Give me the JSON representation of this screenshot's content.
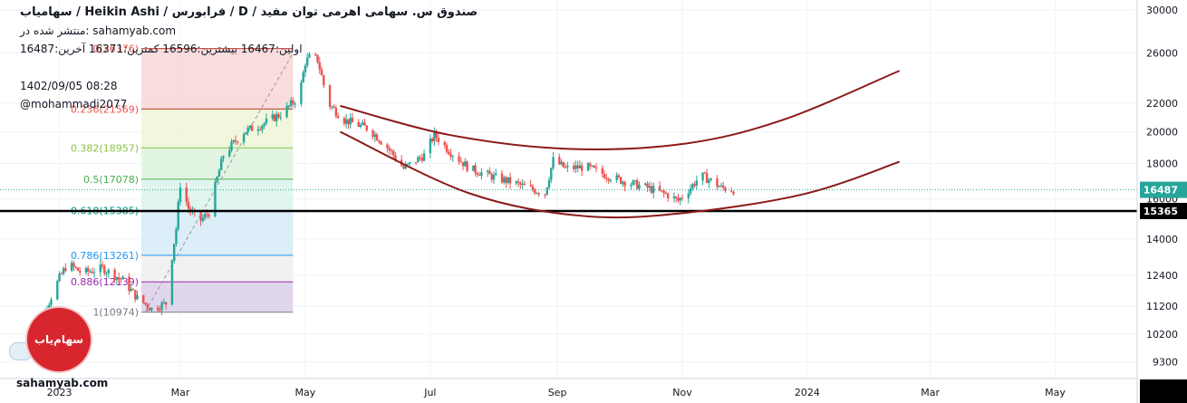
{
  "header": {
    "title": "صندوق س. سهامی اهرمی توان مفید / D / فرابورس / Heikin Ashi / سهامیاب",
    "published": "منتشر شده در: sahamyab.com",
    "ohlc": "اولین:16467 بیشترین:16596 کمترین:16371 آخرین:16487",
    "datetime": "1402/09/05 08:28",
    "author": "@mohammadi2077"
  },
  "watermark": {
    "domain": "sahamyab.com",
    "logo_text": "سهام‌یاب"
  },
  "colors": {
    "up": "#26a69a",
    "down": "#ef5350",
    "arc": "#8b1a1a",
    "support": "#000000",
    "last_price": "#26a69a",
    "fib_line_0236": "#c0392b",
    "fib_line_0382": "#8bc34a",
    "fib_line_05": "#4caf50",
    "fib_line_0618": "#009688",
    "fib_line_0786": "#2196f3",
    "fib_line_0886": "#9c27b0",
    "fib_line_1": "#787b86"
  },
  "chart_data": {
    "type": "candlestick",
    "style": "Heikin Ashi",
    "scale": "log",
    "grid": true,
    "x_range": [
      "2022-12-03",
      "2024-06-10"
    ],
    "ylim": [
      8800,
      31000
    ],
    "x_ticks": [
      {
        "label": "2023",
        "date": "2023-01-01"
      },
      {
        "label": "Mar",
        "date": "2023-03-01"
      },
      {
        "label": "May",
        "date": "2023-05-01"
      },
      {
        "label": "Jul",
        "date": "2023-07-01"
      },
      {
        "label": "Sep",
        "date": "2023-09-01"
      },
      {
        "label": "Nov",
        "date": "2023-11-01"
      },
      {
        "label": "2024",
        "date": "2024-01-01"
      },
      {
        "label": "Mar",
        "date": "2024-03-01"
      },
      {
        "label": "May",
        "date": "2024-05-01"
      }
    ],
    "y_ticks": [
      9300,
      10200,
      11200,
      12400,
      14000,
      16000,
      18000,
      20000,
      22000,
      26000,
      30000
    ],
    "last_price": 16487,
    "support_level": 15365,
    "price_path": [
      [
        "2022-12-15",
        10200
      ],
      [
        "2022-12-25",
        11000
      ],
      [
        "2023-01-01",
        12300
      ],
      [
        "2023-01-05",
        12900
      ],
      [
        "2023-01-12",
        12500
      ],
      [
        "2023-01-22",
        12700
      ],
      [
        "2023-02-01",
        12200
      ],
      [
        "2023-02-08",
        11500
      ],
      [
        "2023-02-15",
        11100
      ],
      [
        "2023-02-22",
        11300
      ],
      [
        "2023-02-27",
        14500
      ],
      [
        "2023-03-01",
        16800
      ],
      [
        "2023-03-05",
        15500
      ],
      [
        "2023-03-10",
        14800
      ],
      [
        "2023-03-15",
        15300
      ],
      [
        "2023-03-22",
        18500
      ],
      [
        "2023-04-01",
        20000
      ],
      [
        "2023-04-10",
        20500
      ],
      [
        "2023-04-20",
        21300
      ],
      [
        "2023-04-28",
        22500
      ],
      [
        "2023-05-01",
        25200
      ],
      [
        "2023-05-04",
        25800
      ],
      [
        "2023-05-07",
        25400
      ],
      [
        "2023-05-12",
        22000
      ],
      [
        "2023-05-20",
        20800
      ],
      [
        "2023-06-01",
        20200
      ],
      [
        "2023-06-10",
        19000
      ],
      [
        "2023-06-18",
        17700
      ],
      [
        "2023-06-28",
        18500
      ],
      [
        "2023-07-03",
        19800
      ],
      [
        "2023-07-10",
        18800
      ],
      [
        "2023-07-20",
        17700
      ],
      [
        "2023-08-01",
        17200
      ],
      [
        "2023-08-10",
        16900
      ],
      [
        "2023-08-20",
        16500
      ],
      [
        "2023-08-26",
        16300
      ],
      [
        "2023-08-30",
        18200
      ],
      [
        "2023-09-05",
        17700
      ],
      [
        "2023-09-15",
        17800
      ],
      [
        "2023-09-25",
        17300
      ],
      [
        "2023-10-05",
        16900
      ],
      [
        "2023-10-15",
        16600
      ],
      [
        "2023-10-25",
        16200
      ],
      [
        "2023-10-30",
        15900
      ],
      [
        "2023-11-05",
        16600
      ],
      [
        "2023-11-10",
        17300
      ],
      [
        "2023-11-15",
        17000
      ],
      [
        "2023-11-20",
        16600
      ],
      [
        "2023-11-26",
        16487
      ]
    ],
    "fib_retracement": {
      "x_start": "2023-02-10",
      "x_end": "2023-04-25",
      "levels": [
        {
          "ratio": 0,
          "label": "0(26376)",
          "price": 26376
        },
        {
          "ratio": 0.236,
          "label": "0.236(21569)",
          "price": 21569
        },
        {
          "ratio": 0.382,
          "label": "0.382(18957)",
          "price": 18957
        },
        {
          "ratio": 0.5,
          "label": "0.5(17078)",
          "price": 17078
        },
        {
          "ratio": 0.618,
          "label": "0.618(15385)",
          "price": 15385
        },
        {
          "ratio": 0.786,
          "label": "0.786(13261)",
          "price": 13261
        },
        {
          "ratio": 0.886,
          "label": "0.886(12139)",
          "price": 12139
        },
        {
          "ratio": 1,
          "label": "1(10974)",
          "price": 10974
        }
      ],
      "zone_colors": [
        "#f8d7d7",
        "#eef6d6",
        "#ddf3dd",
        "#dcf3ec",
        "#d6ebf7",
        "#eeeeee",
        "#dcd0ea"
      ]
    },
    "trend_dashed": [
      [
        "2023-02-12",
        11000
      ],
      [
        "2023-04-25",
        26000
      ]
    ],
    "arcs": [
      {
        "name": "upper-arc",
        "points": [
          [
            "2023-05-18",
            21800
          ],
          [
            "2023-07-10",
            19800
          ],
          [
            "2023-09-05",
            18900
          ],
          [
            "2023-11-01",
            19200
          ],
          [
            "2023-12-20",
            20800
          ],
          [
            "2024-02-15",
            24500
          ]
        ]
      },
      {
        "name": "lower-arc",
        "points": [
          [
            "2023-05-18",
            20000
          ],
          [
            "2023-07-20",
            16300
          ],
          [
            "2023-09-15",
            15100
          ],
          [
            "2023-11-05",
            15300
          ],
          [
            "2024-01-01",
            16300
          ],
          [
            "2024-02-15",
            18100
          ]
        ]
      }
    ],
    "support_line_start": "2022-12-03"
  }
}
